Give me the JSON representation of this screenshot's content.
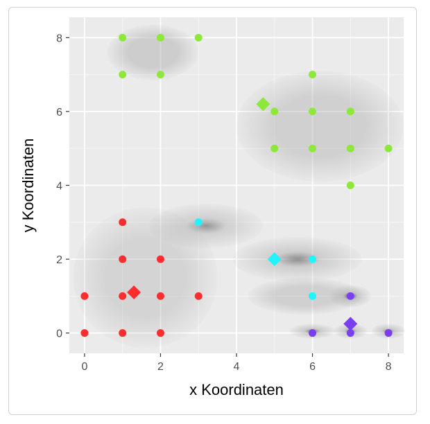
{
  "chart_data": {
    "type": "scatter",
    "title": "",
    "xlabel": "x Koordinaten",
    "ylabel": "y Koordinaten",
    "xlim": [
      -0.4,
      8.4
    ],
    "ylim": [
      -0.55,
      8.55
    ],
    "x_ticks": [
      0,
      2,
      4,
      6,
      8
    ],
    "y_ticks": [
      0,
      2,
      4,
      6,
      8
    ],
    "grid": true,
    "legend": "none",
    "colors": {
      "panel": "#ebebeb",
      "grid": "#ffffff",
      "red": "#ff2d2d",
      "cyan": "#1ff4ff",
      "green": "#8de83a",
      "purple": "#7b3ff2",
      "density": "#a8a8a8",
      "density_peak": "#2b2b2b"
    },
    "series": [
      {
        "color": "#ff2d2d",
        "points": [
          [
            0,
            0
          ],
          [
            1,
            0
          ],
          [
            2,
            0
          ],
          [
            0,
            1
          ],
          [
            1,
            1
          ],
          [
            2,
            1
          ],
          [
            3,
            1
          ],
          [
            1,
            2
          ],
          [
            2,
            2
          ],
          [
            1,
            3
          ]
        ],
        "centroid": [
          1.3,
          1.1
        ]
      },
      {
        "color": "#1ff4ff",
        "points": [
          [
            3,
            3
          ],
          [
            6,
            2
          ],
          [
            6,
            1
          ]
        ],
        "centroid": [
          5.0,
          2.0
        ]
      },
      {
        "color": "#8de83a",
        "points": [
          [
            1,
            8
          ],
          [
            2,
            8
          ],
          [
            3,
            8
          ],
          [
            1,
            7
          ],
          [
            2,
            7
          ],
          [
            6,
            7
          ],
          [
            5,
            6
          ],
          [
            6,
            6
          ],
          [
            7,
            6
          ],
          [
            5,
            5
          ],
          [
            6,
            5
          ],
          [
            7,
            5
          ],
          [
            8,
            5
          ],
          [
            7,
            4
          ]
        ],
        "centroid": [
          4.7,
          6.2
        ]
      },
      {
        "color": "#7b3ff2",
        "points": [
          [
            7,
            1
          ],
          [
            6,
            0
          ],
          [
            7,
            0
          ],
          [
            8,
            0
          ]
        ],
        "centroid": [
          7.0,
          0.25
        ]
      }
    ],
    "density_regions": [
      {
        "cx": 1.8,
        "cy": 7.6,
        "rx": 1.2,
        "ry": 0.75,
        "opacity": 0.45,
        "peak": 0
      },
      {
        "cx": 6.2,
        "cy": 5.6,
        "rx": 2.2,
        "ry": 1.5,
        "opacity": 0.4,
        "peak": 0
      },
      {
        "cx": 1.6,
        "cy": 1.5,
        "rx": 1.9,
        "ry": 1.9,
        "opacity": 0.35,
        "peak": 0
      },
      {
        "cx": 3.2,
        "cy": 2.9,
        "rx": 1.5,
        "ry": 0.6,
        "opacity": 0.4,
        "peak": 0.45
      },
      {
        "cx": 5.6,
        "cy": 2.0,
        "rx": 1.7,
        "ry": 0.6,
        "opacity": 0.45,
        "peak": 0.5
      },
      {
        "cx": 5.8,
        "cy": 1.0,
        "rx": 1.5,
        "ry": 0.5,
        "opacity": 0.4,
        "peak": 0
      },
      {
        "cx": 7.0,
        "cy": 1.0,
        "rx": 0.55,
        "ry": 0.3,
        "opacity": 0.5,
        "peak": 0.95
      },
      {
        "cx": 6.0,
        "cy": 0.05,
        "rx": 0.6,
        "ry": 0.2,
        "opacity": 0.5,
        "peak": 0.7
      },
      {
        "cx": 7.0,
        "cy": 0.05,
        "rx": 0.45,
        "ry": 0.2,
        "opacity": 0.5,
        "peak": 0.7
      },
      {
        "cx": 8.0,
        "cy": 0.05,
        "rx": 0.45,
        "ry": 0.2,
        "opacity": 0.5,
        "peak": 0.7
      }
    ]
  }
}
